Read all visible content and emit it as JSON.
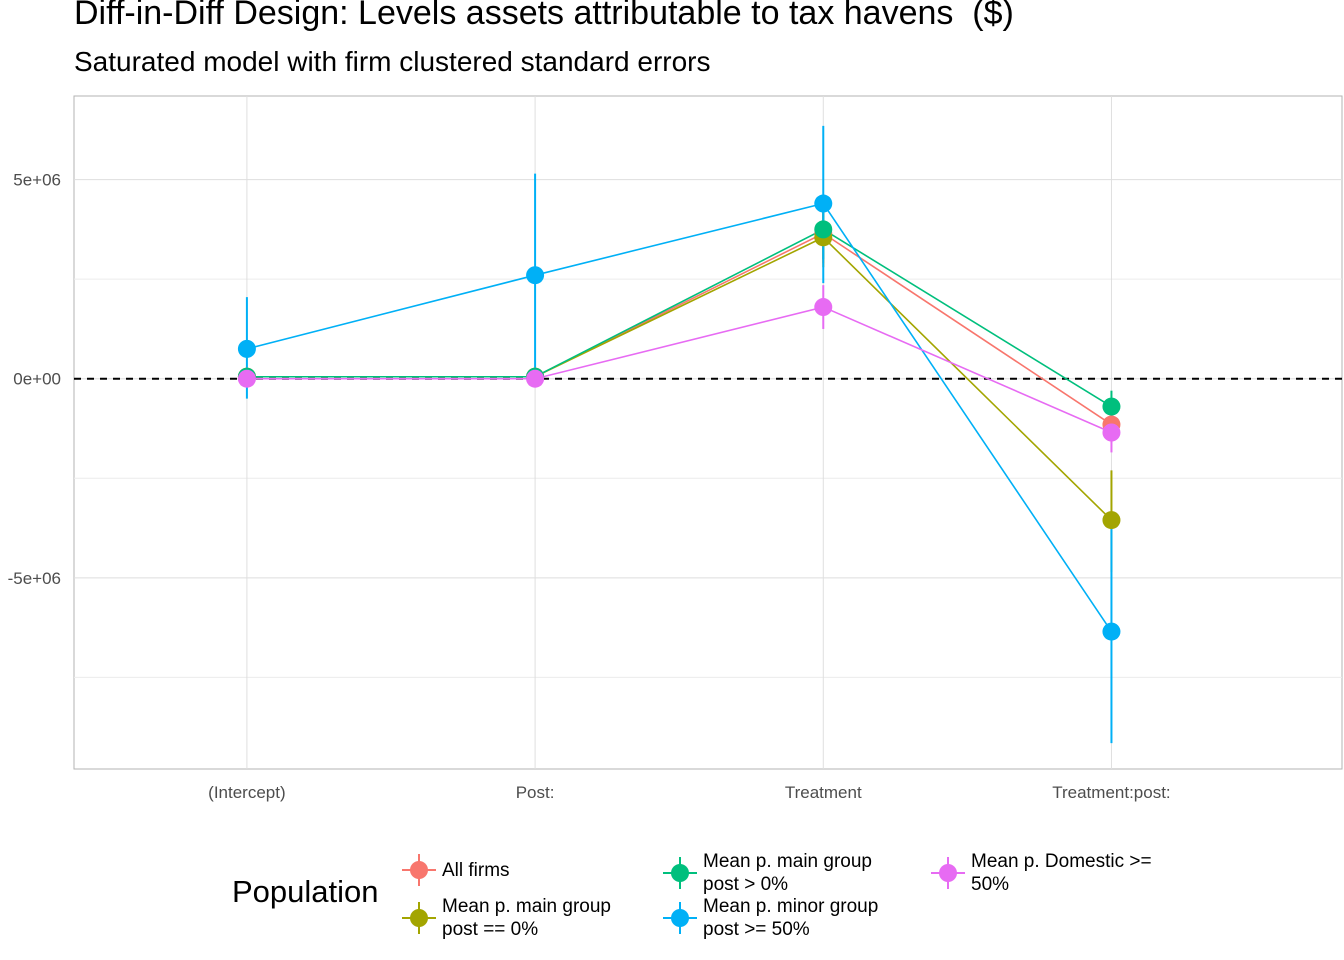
{
  "title": "Diff-in-Diff Design: Levels assets attributable to tax havens  ($)",
  "subtitle": "Saturated model with firm clustered standard errors",
  "legend": {
    "title": "Population",
    "items": [
      {
        "label": "All firms",
        "color": "#F8766D"
      },
      {
        "label": "Mean p. main group\npost == 0%",
        "color": "#A3A500"
      },
      {
        "label": "Mean p. main group\npost > 0%",
        "color": "#00BF7D"
      },
      {
        "label": "Mean p. minor group\npost >= 50%",
        "color": "#00B0F6"
      },
      {
        "label": "Mean p. Domestic >=\n50%",
        "color": "#E76BF3"
      }
    ]
  },
  "chart_data": {
    "type": "line",
    "categories": [
      "(Intercept)",
      "Post:",
      "Treatment",
      "Treatment:post:"
    ],
    "yticks": [
      -5000000,
      0,
      5000000
    ],
    "ytick_labels": [
      "-5e+06",
      "0e+00",
      "5e+06"
    ],
    "ylim": [
      -9800000,
      7100000
    ],
    "reference_line": {
      "y": 0,
      "style": "dashed"
    },
    "grid": true,
    "legend_position": "bottom",
    "series": [
      {
        "name": "All firms",
        "color": "#F8766D",
        "values": [
          50000,
          50000,
          3650000,
          -1150000
        ],
        "lower": [
          0,
          0,
          2900000,
          -1600000
        ],
        "upper": [
          100000,
          100000,
          4300000,
          -700000
        ]
      },
      {
        "name": "Mean p. main group\npost == 0%",
        "color": "#A3A500",
        "values": [
          50000,
          50000,
          3550000,
          -3550000
        ],
        "lower": [
          0,
          0,
          2800000,
          -4850000
        ],
        "upper": [
          100000,
          100000,
          4300000,
          -2300000
        ]
      },
      {
        "name": "Mean p. main group\npost > 0%",
        "color": "#00BF7D",
        "values": [
          50000,
          50000,
          3750000,
          -700000
        ],
        "lower": [
          0,
          0,
          3000000,
          -1100000
        ],
        "upper": [
          100000,
          100000,
          4500000,
          -300000
        ]
      },
      {
        "name": "Mean p. minor group\npost >= 50%",
        "color": "#00B0F6",
        "values": [
          750000,
          2600000,
          4400000,
          -6350000
        ],
        "lower": [
          -500000,
          50000,
          2400000,
          -9150000
        ],
        "upper": [
          2050000,
          5150000,
          6350000,
          -3550000
        ]
      },
      {
        "name": "Mean p. Domestic >=\n50%",
        "color": "#E76BF3",
        "values": [
          0,
          0,
          1800000,
          -1350000
        ],
        "lower": [
          -50000,
          -50000,
          1250000,
          -1850000
        ],
        "upper": [
          50000,
          50000,
          2350000,
          -850000
        ]
      }
    ]
  }
}
